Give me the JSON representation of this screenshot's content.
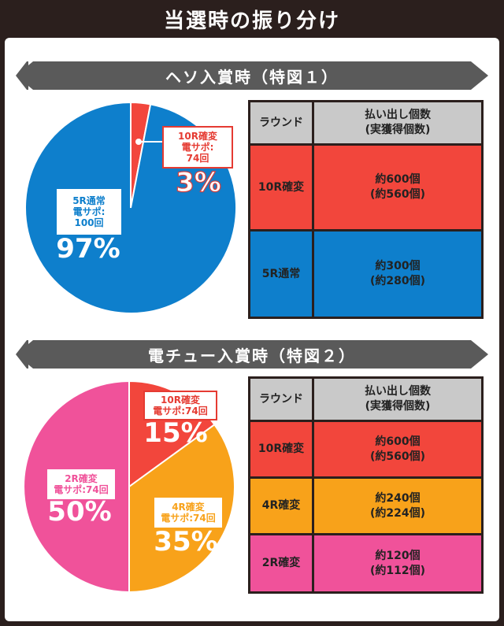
{
  "header": {
    "title": "当選時の振り分け"
  },
  "colors": {
    "red": "#f2463c",
    "blue": "#0e7fcc",
    "orange": "#f8a21a",
    "pink": "#f0529a",
    "dark": "#2b1f1d",
    "gray": "#c9c9c9"
  },
  "section1": {
    "title": "ヘソ入賞時（特図１）",
    "table": {
      "headers": [
        "ラウンド",
        "払い出し個数\n(実獲得個数)"
      ],
      "rows": [
        {
          "round": "10R確変",
          "payout": "約600個\n(約560個)"
        },
        {
          "round": "5R通常",
          "payout": "約300個\n(約280個)"
        }
      ]
    }
  },
  "section2": {
    "title": "電チュー入賞時（特図２）",
    "table": {
      "headers": [
        "ラウンド",
        "払い出し個数\n(実獲得個数)"
      ],
      "rows": [
        {
          "round": "10R確変",
          "payout": "約600個\n(約560個)"
        },
        {
          "round": "4R確変",
          "payout": "約240個\n(約224個)"
        },
        {
          "round": "2R確変",
          "payout": "約120個\n(約112個)"
        }
      ]
    }
  },
  "chart_data": [
    {
      "type": "pie",
      "title": "ヘソ入賞時（特図１）",
      "slices": [
        {
          "label": "10R確変\n電サポ:\n74回",
          "value": 3,
          "display": "3%",
          "color": "#f2463c"
        },
        {
          "label": "5R通常\n電サポ:\n100回",
          "value": 97,
          "display": "97%",
          "color": "#0e7fcc"
        }
      ]
    },
    {
      "type": "pie",
      "title": "電チュー入賞時（特図２）",
      "slices": [
        {
          "label": "10R確変\n電サポ:74回",
          "value": 15,
          "display": "15%",
          "color": "#f2463c"
        },
        {
          "label": "4R確変\n電サポ:74回",
          "value": 35,
          "display": "35%",
          "color": "#f8a21a"
        },
        {
          "label": "2R確変\n電サポ:74回",
          "value": 50,
          "display": "50%",
          "color": "#f0529a"
        }
      ]
    }
  ]
}
